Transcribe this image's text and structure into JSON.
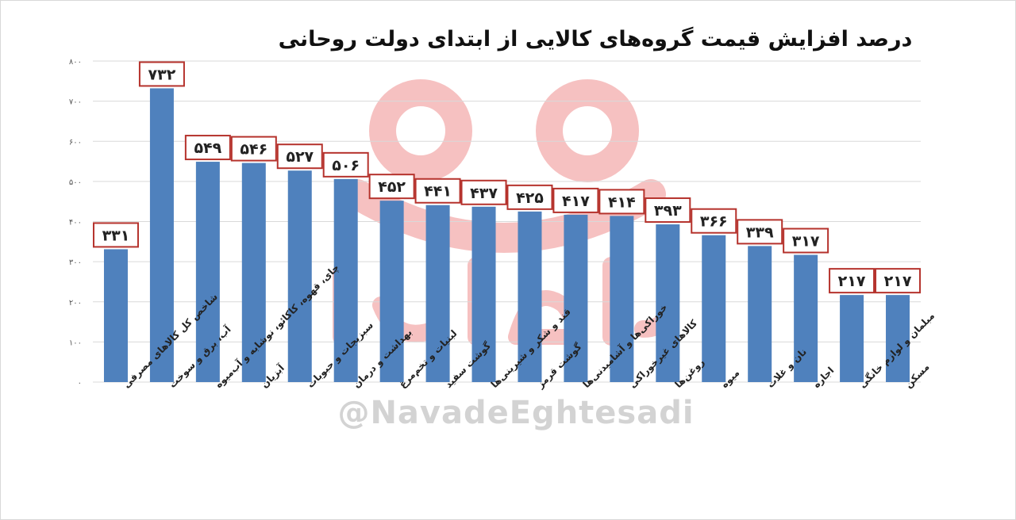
{
  "chart_data": {
    "type": "bar",
    "title": "درصد افزایش قیمت گروه‌های کالایی از ابتدای دولت روحانی",
    "categories": [
      "شاخص کل کالاهای مصرفی",
      "آب، برق و سوخت",
      "چای، قهوه، کاکائو، نوشابه و آب‌میوه",
      "آبزیان",
      "سبزیجات و حبوبات",
      "بهداشت و درمان",
      "لبنیات و تخم‌مرغ",
      "گوشت سفید",
      "قند و شکر و شیرینی‌ها",
      "گوشت قرمز",
      "خوراکی‌ها و آشامیدنی‌ها",
      "کالاهای غیرخوراکی",
      "روغن‌ها",
      "میوه",
      "نان و غلات",
      "اجاره",
      "مبلمان و لوازم خانگی",
      "مسکن"
    ],
    "values": [
      331,
      732,
      549,
      546,
      527,
      506,
      452,
      441,
      437,
      425,
      417,
      414,
      393,
      366,
      339,
      317,
      217,
      217
    ],
    "data_labels": [
      "۳۳۱",
      "۷۳۲",
      "۵۴۹",
      "۵۴۶",
      "۵۲۷",
      "۵۰۶",
      "۴۵۲",
      "۴۴۱",
      "۴۳۷",
      "۴۲۵",
      "۴۱۷",
      "۴۱۴",
      "۳۹۳",
      "۳۶۶",
      "۳۳۹",
      "۳۱۷",
      "۲۱۷",
      "۲۱۷"
    ],
    "yticks": [
      0,
      100,
      200,
      300,
      400,
      500,
      600,
      700,
      800
    ],
    "ytick_labels": [
      "۰",
      "۱۰۰",
      "۲۰۰",
      "۳۰۰",
      "۴۰۰",
      "۵۰۰",
      "۶۰۰",
      "۷۰۰",
      "۸۰۰"
    ],
    "ylim": [
      0,
      800
    ],
    "grid": true,
    "bar_color": "#4f81bd",
    "label_border_color": "#b5322c"
  },
  "watermark": {
    "text": "@NavadeEghtesadi",
    "logo_color": "#ee8e8e"
  }
}
